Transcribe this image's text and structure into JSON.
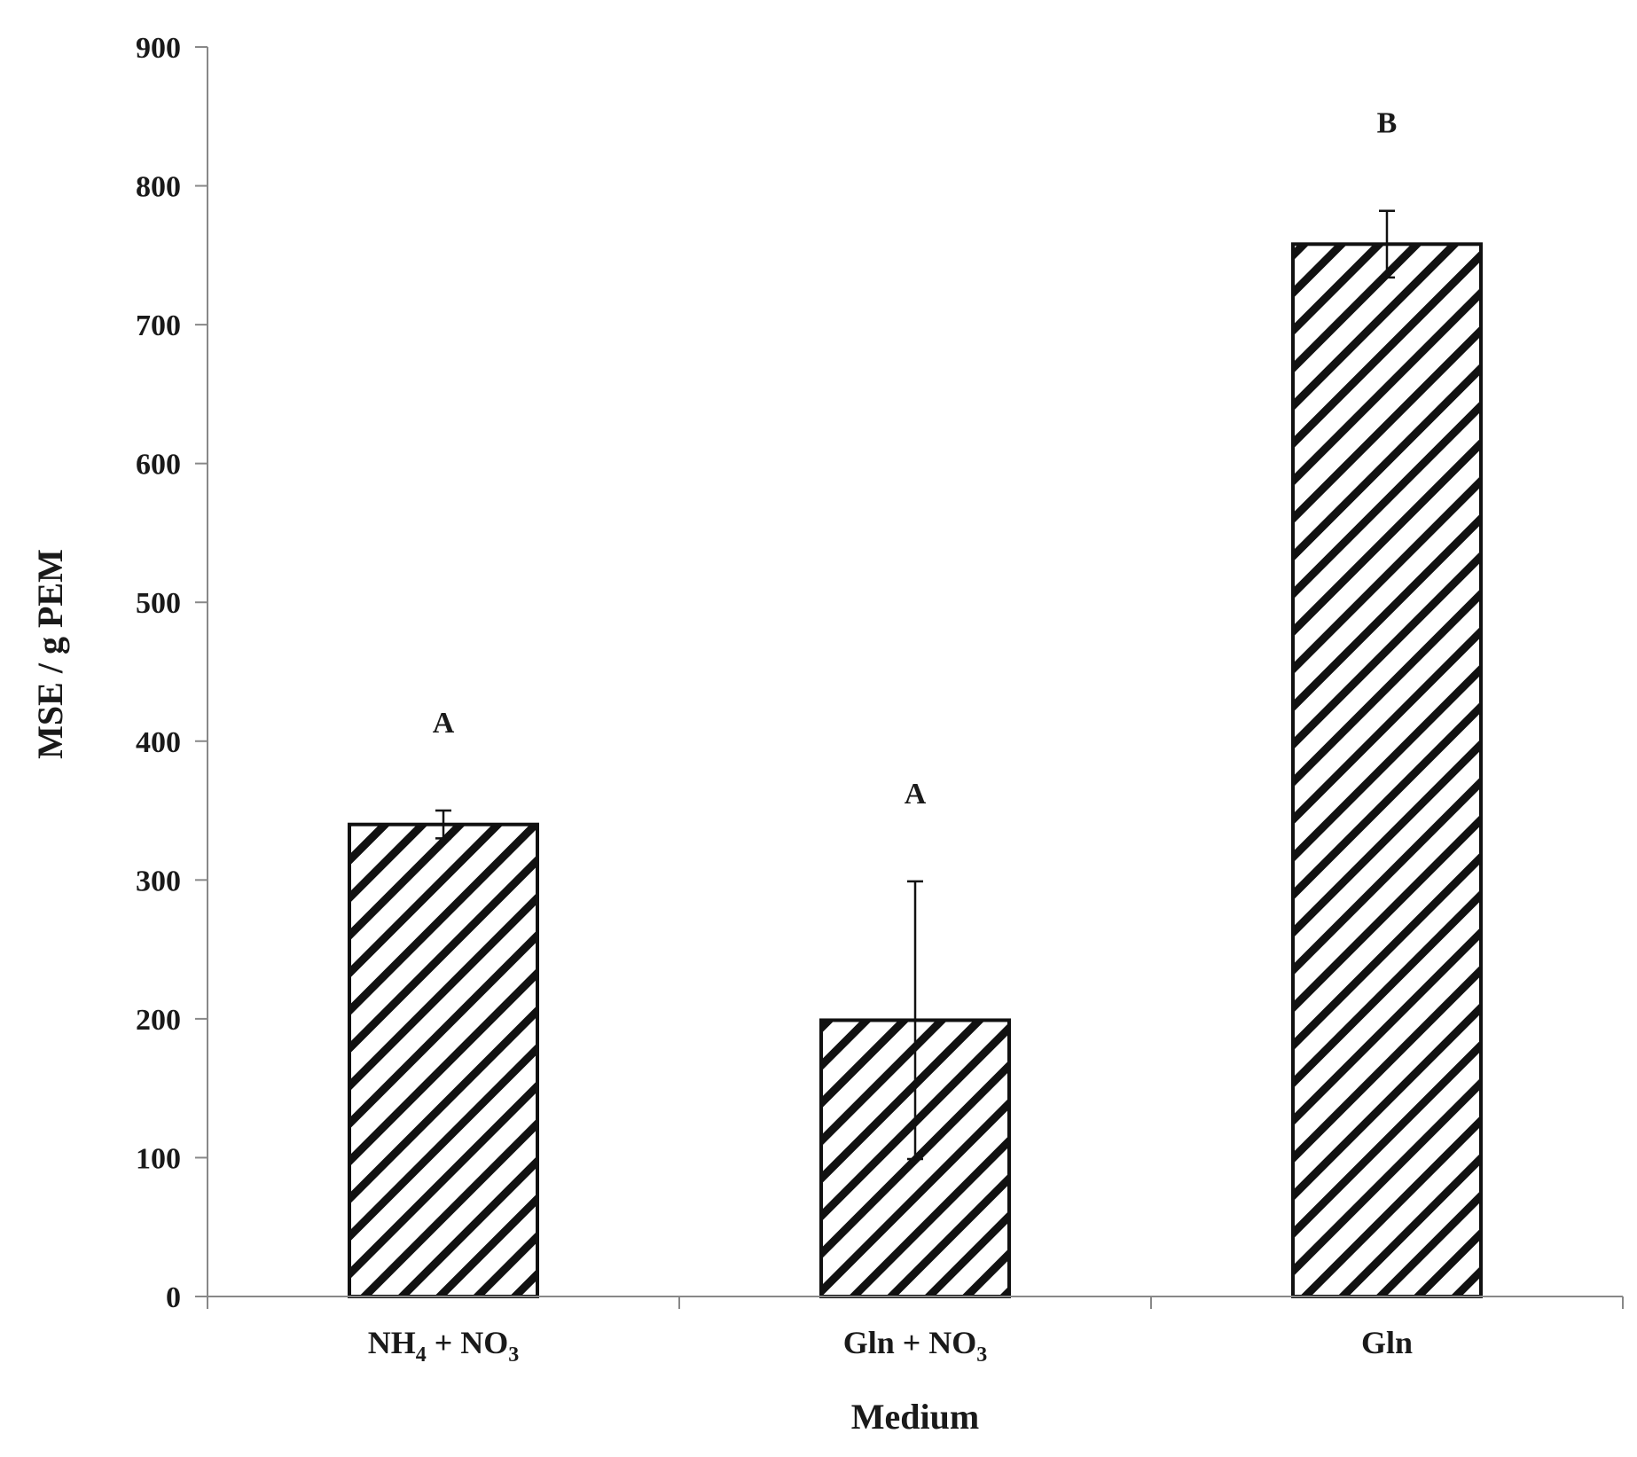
{
  "chart_data": {
    "type": "bar",
    "categories": [
      {
        "label": "NH4 + NO3",
        "parts": [
          [
            "NH",
            ""
          ],
          [
            "4",
            "sub"
          ],
          [
            " + NO",
            ""
          ],
          [
            "3",
            "sub"
          ]
        ]
      },
      {
        "label": "Gln + NO3",
        "parts": [
          [
            "Gln + NO",
            ""
          ],
          [
            "3",
            "sub"
          ]
        ]
      },
      {
        "label": "Gln",
        "parts": [
          [
            "Gln",
            ""
          ]
        ]
      }
    ],
    "values": [
      340,
      199,
      758
    ],
    "error_plus": [
      10,
      100,
      24
    ],
    "error_minus": [
      10,
      100,
      24
    ],
    "significance_letters": [
      "A",
      "A",
      "B"
    ],
    "xlabel": "Medium",
    "ylabel": "MSE / g PEM",
    "ylim": [
      0,
      900
    ],
    "yticks": [
      0,
      100,
      200,
      300,
      400,
      500,
      600,
      700,
      800,
      900
    ],
    "grid": false,
    "bar_fill": "diagonal-hatch",
    "colors": {
      "bar_stroke": "#111111",
      "hatch": "#111111",
      "axis": "#888888",
      "error_bar": "#111111"
    }
  }
}
